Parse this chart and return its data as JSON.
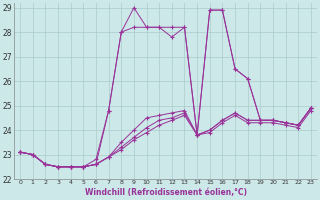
{
  "xlabel": "Windchill (Refroidissement éolien,°C)",
  "xlim": [
    -0.5,
    23.5
  ],
  "ylim": [
    22,
    29.2
  ],
  "yticks": [
    22,
    23,
    24,
    25,
    26,
    27,
    28,
    29
  ],
  "xticks": [
    0,
    1,
    2,
    3,
    4,
    5,
    6,
    7,
    8,
    9,
    10,
    11,
    12,
    13,
    14,
    15,
    16,
    17,
    18,
    19,
    20,
    21,
    22,
    23
  ],
  "background_color": "#cce8e8",
  "line_color": "#993399",
  "grid_color": "#aacccc",
  "lines": [
    [
      23.1,
      23.0,
      22.6,
      22.5,
      22.5,
      22.5,
      22.8,
      24.8,
      28.0,
      29.0,
      28.2,
      28.2,
      27.8,
      28.2,
      23.8,
      28.9,
      28.9,
      26.5,
      26.1,
      24.4,
      24.4,
      24.3,
      24.2,
      24.9
    ],
    [
      23.1,
      23.0,
      22.6,
      22.5,
      22.5,
      22.5,
      22.6,
      24.8,
      28.0,
      28.2,
      28.2,
      28.2,
      28.2,
      28.2,
      23.8,
      28.9,
      28.9,
      26.5,
      26.1,
      24.4,
      24.4,
      24.3,
      24.2,
      24.9
    ],
    [
      23.1,
      23.0,
      22.6,
      22.5,
      22.5,
      22.5,
      22.6,
      22.9,
      23.5,
      24.0,
      24.5,
      24.6,
      24.7,
      24.8,
      23.8,
      24.0,
      24.4,
      24.7,
      24.4,
      24.4,
      24.4,
      24.3,
      24.2,
      24.9
    ],
    [
      23.1,
      23.0,
      22.6,
      22.5,
      22.5,
      22.5,
      22.6,
      22.9,
      23.3,
      23.7,
      24.1,
      24.4,
      24.5,
      24.7,
      23.8,
      24.0,
      24.4,
      24.7,
      24.4,
      24.4,
      24.4,
      24.3,
      24.2,
      24.9
    ],
    [
      23.1,
      23.0,
      22.6,
      22.5,
      22.5,
      22.5,
      22.6,
      22.9,
      23.2,
      23.6,
      23.9,
      24.2,
      24.4,
      24.6,
      23.8,
      23.9,
      24.3,
      24.6,
      24.3,
      24.3,
      24.3,
      24.2,
      24.1,
      24.8
    ]
  ]
}
